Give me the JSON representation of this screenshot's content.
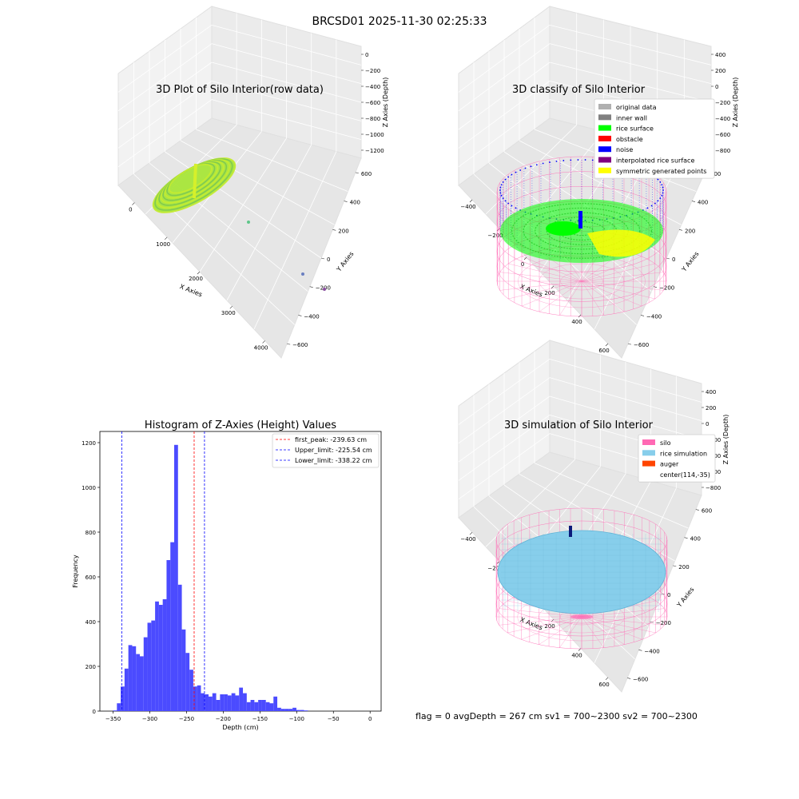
{
  "figure_title": "BRCSD01 2025-11-30 02:25:33",
  "footer": "flag = 0     avgDepth = 267 cm  sv1 = 700~2300  sv2 = 700~2300",
  "colors": {
    "hist_bar": "#4b4bff",
    "first_peak": "#ff0000",
    "limit": "#0000ff",
    "silo": "#ff69b4",
    "rice_sim": "#87ceeb",
    "auger": "#ff4500",
    "rice_surface": "#00ff00",
    "noise": "#0000ff",
    "symmetric": "#ffff00",
    "raw": "#a8e63a"
  },
  "chart_data": [
    {
      "type": "scatter",
      "title": "3D Plot of Silo Interior(row data)",
      "xlabel": "X Axies",
      "ylabel": "Y Axies",
      "zlabel": "Z Axies (Depth)",
      "x_ticks": [
        "0",
        "1000",
        "2000",
        "3000",
        "4000"
      ],
      "y_ticks": [
        "600",
        "400",
        "200",
        "0",
        "−200",
        "−400",
        "−600"
      ],
      "z_ticks": [
        "0",
        "−200",
        "−400",
        "−600",
        "−800",
        "−1000",
        "−1200"
      ]
    },
    {
      "type": "scatter",
      "title": "3D classify of Silo Interior",
      "xlabel": "X Axies",
      "ylabel": "Y Axies",
      "zlabel": "Z Axies (Depth)",
      "x_ticks": [
        "−400",
        "−200",
        "0",
        "200",
        "400",
        "600"
      ],
      "y_ticks": [
        "600",
        "400",
        "200",
        "0",
        "−200",
        "−400",
        "−600"
      ],
      "z_ticks": [
        "400",
        "200",
        "0",
        "−200",
        "−400",
        "−600",
        "−800"
      ],
      "legend": [
        {
          "label": "original data",
          "color": "#b0b0b0"
        },
        {
          "label": "inner wall",
          "color": "#808080"
        },
        {
          "label": "rice surface",
          "color": "#00ff00"
        },
        {
          "label": "obstacle",
          "color": "#ff0000"
        },
        {
          "label": "noise",
          "color": "#0000ff"
        },
        {
          "label": "interpolated rice surface",
          "color": "#800080"
        },
        {
          "label": "symmetric generated points",
          "color": "#ffff00"
        }
      ]
    },
    {
      "type": "bar",
      "title": "Histogram of Z-Axies (Height) Values",
      "xlabel": "Depth (cm)",
      "ylabel": "Frequency",
      "xlim": [
        -368,
        15
      ],
      "ylim": [
        0,
        1250
      ],
      "x_ticks": [
        -350,
        -300,
        -250,
        -200,
        -150,
        -100,
        -50,
        0
      ],
      "y_ticks": [
        0,
        200,
        400,
        600,
        800,
        1000,
        1200
      ],
      "bin_start": -350,
      "bin_width": 5.2,
      "values": [
        3,
        35,
        110,
        190,
        295,
        290,
        255,
        245,
        330,
        395,
        405,
        490,
        475,
        500,
        675,
        755,
        1190,
        565,
        365,
        260,
        185,
        110,
        115,
        80,
        75,
        65,
        80,
        50,
        75,
        75,
        70,
        80,
        70,
        105,
        80,
        40,
        50,
        40,
        50,
        50,
        40,
        35,
        65,
        15,
        10,
        10,
        10,
        15,
        5,
        5,
        3
      ],
      "lines": [
        {
          "label": "first_peak: -239.63 cm",
          "value": -239.63,
          "color": "#ff0000"
        },
        {
          "label": "Upper_limit: -225.54 cm",
          "value": -225.54,
          "color": "#0000ff"
        },
        {
          "label": "Lower_limit: -338.22 cm",
          "value": -338.22,
          "color": "#0000ff"
        }
      ]
    },
    {
      "type": "scatter",
      "title": "3D simulation of Silo Interior",
      "xlabel": "X Axies",
      "ylabel": "Y Axies",
      "zlabel": "Z Axies (Depth)",
      "x_ticks": [
        "−400",
        "−200",
        "0",
        "200",
        "400",
        "600"
      ],
      "y_ticks": [
        "600",
        "400",
        "200",
        "0",
        "−200",
        "−400",
        "−600"
      ],
      "z_ticks": [
        "400",
        "200",
        "0",
        "−200",
        "−400",
        "−600",
        "−800"
      ],
      "legend": [
        {
          "label": "silo",
          "color": "#ff69b4"
        },
        {
          "label": "rice simulation",
          "color": "#87ceeb"
        },
        {
          "label": "auger",
          "color": "#ff4500"
        },
        {
          "label": "center(114,-35)",
          "color": ""
        }
      ]
    }
  ]
}
